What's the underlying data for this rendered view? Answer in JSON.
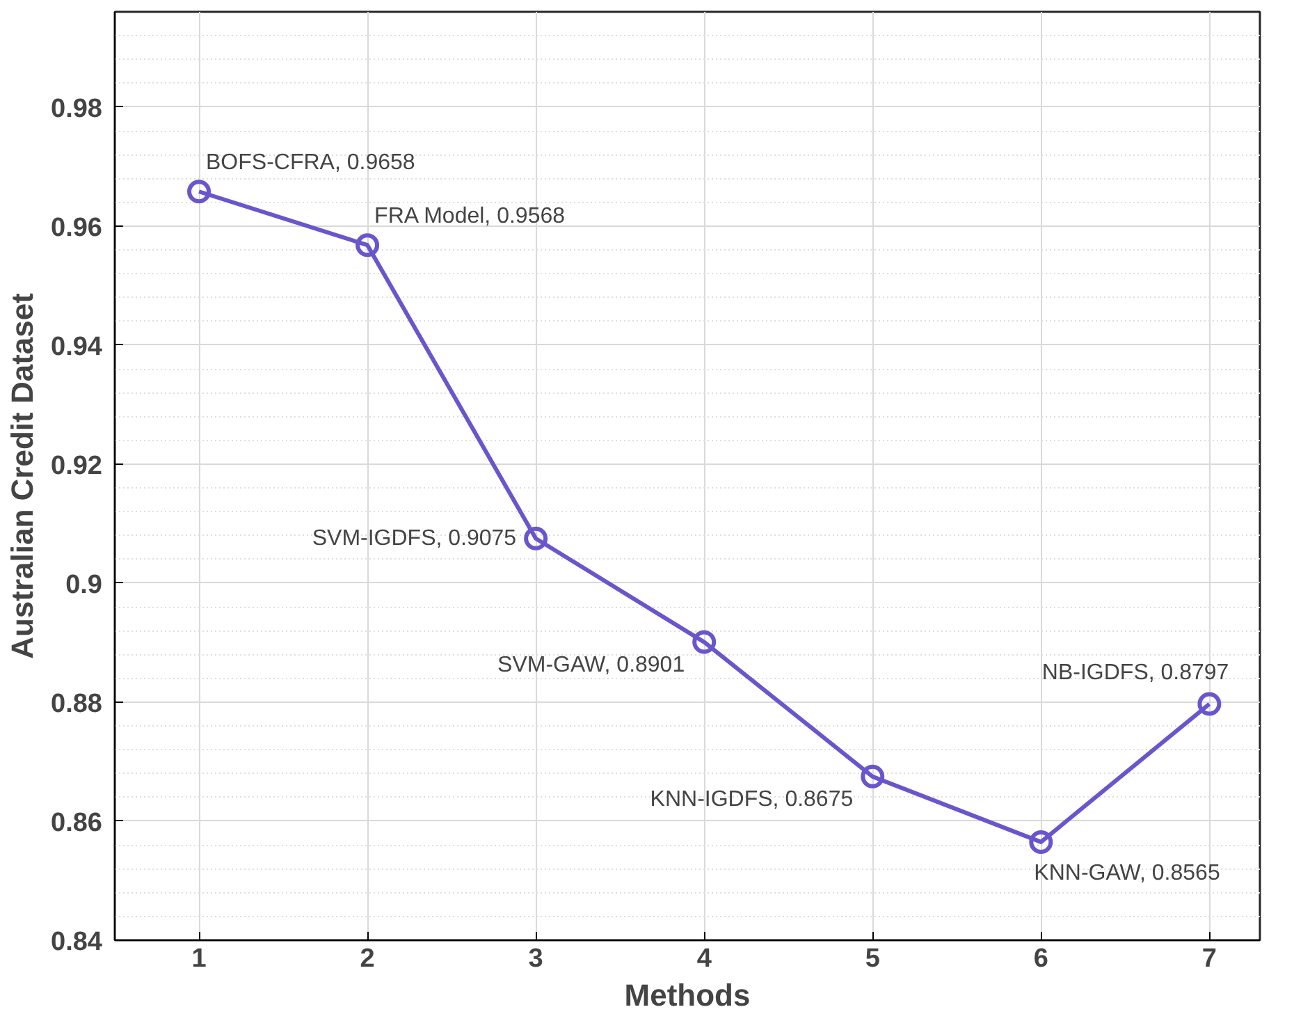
{
  "chart_data": {
    "type": "line",
    "xlabel": "Methods",
    "ylabel": "Australian Credit Dataset",
    "x": [
      1,
      2,
      3,
      4,
      5,
      6,
      7
    ],
    "series": [
      {
        "color": "#6a56cc",
        "values": [
          0.9658,
          0.9568,
          0.9075,
          0.8901,
          0.8675,
          0.8565,
          0.8797
        ]
      }
    ],
    "xlim": [
      0.5,
      7.3
    ],
    "ylim": [
      0.84,
      0.996
    ],
    "xticks": [
      1,
      2,
      3,
      4,
      5,
      6,
      7
    ],
    "yticks": [
      {
        "value": 0.84,
        "label": "0.84"
      },
      {
        "value": 0.86,
        "label": "0.86"
      },
      {
        "value": 0.88,
        "label": "0.88"
      },
      {
        "value": 0.9,
        "label": "0.9"
      },
      {
        "value": 0.92,
        "label": "0.92"
      },
      {
        "value": 0.94,
        "label": "0.94"
      },
      {
        "value": 0.96,
        "label": "0.96"
      },
      {
        "value": 0.98,
        "label": "0.98"
      }
    ],
    "annotations": [
      {
        "text": "BOFS-CFRA, 0.9658",
        "x": 1,
        "y": 0.9658
      },
      {
        "text": "FRA Model, 0.9568",
        "x": 2,
        "y": 0.9568
      },
      {
        "text": "SVM-IGDFS, 0.9075",
        "x": 3,
        "y": 0.9075
      },
      {
        "text": "SVM-GAW, 0.8901",
        "x": 4,
        "y": 0.8901
      },
      {
        "text": "KNN-IGDFS, 0.8675",
        "x": 5,
        "y": 0.8675
      },
      {
        "text": "KNN-GAW, 0.8565",
        "x": 6,
        "y": 0.8565
      },
      {
        "text": "NB-IGDFS, 0.8797",
        "x": 7,
        "y": 0.8797
      }
    ],
    "grid": true,
    "marker": "circle",
    "line_style": "solid"
  }
}
